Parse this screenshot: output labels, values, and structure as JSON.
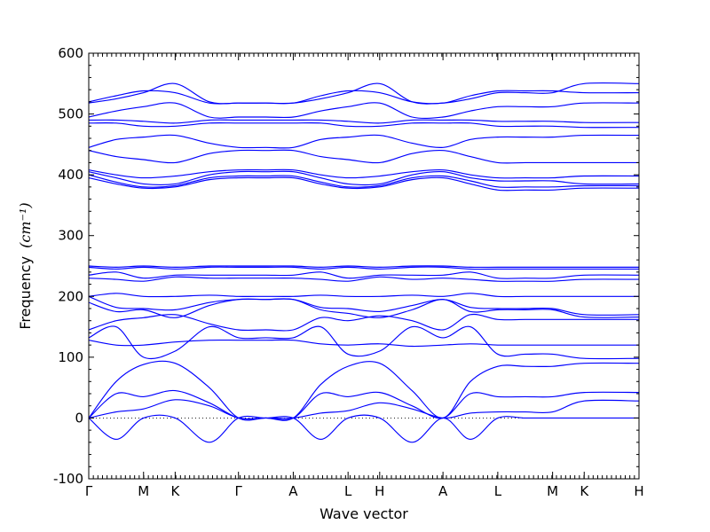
{
  "chart_data": {
    "type": "line",
    "xlabel": "Wave vector",
    "ylabel": "Frequency",
    "ylabel_unit": "(cm⁻¹)",
    "ylim": [
      -100,
      600
    ],
    "yticks": [
      -100,
      0,
      100,
      200,
      300,
      400,
      500,
      600
    ],
    "grid": false,
    "zero_line": "dotted",
    "kpath": [
      {
        "label": "Γ",
        "x": 0.0
      },
      {
        "label": "M",
        "x": 1.0
      },
      {
        "label": "K",
        "x": 1.577
      },
      {
        "label": "Γ",
        "x": 2.732
      },
      {
        "label": "A",
        "x": 3.732
      },
      {
        "label": "L",
        "x": 4.732
      },
      {
        "label": "H",
        "x": 5.309
      },
      {
        "label": "A",
        "x": 6.464
      },
      {
        "label": "L",
        "x": 7.464
      },
      {
        "label": "M",
        "x": 8.464
      },
      {
        "label": "K",
        "x": 9.041
      },
      {
        "label": "H",
        "x": 10.041
      }
    ],
    "series": [
      {
        "x": [
          0,
          0.5,
          1.0,
          1.577,
          2.2,
          2.732,
          3.232,
          3.732,
          4.232,
          4.732,
          5.309,
          5.9,
          6.464,
          6.964,
          7.464,
          7.964,
          8.464,
          9.041,
          10.041
        ],
        "values": [
          0,
          -35,
          0,
          0,
          -40,
          0,
          0,
          0,
          -35,
          0,
          0,
          -40,
          0,
          -35,
          0,
          0,
          0,
          0,
          0
        ]
      },
      {
        "x": [
          0,
          0.5,
          1.0,
          1.577,
          2.2,
          2.732,
          3.232,
          3.732,
          4.232,
          4.732,
          5.309,
          5.9,
          6.464,
          6.964,
          7.464,
          7.964,
          8.464,
          9.041,
          10.041
        ],
        "values": [
          0,
          40,
          35,
          45,
          25,
          0,
          0,
          0,
          40,
          35,
          42,
          20,
          0,
          40,
          35,
          35,
          35,
          42,
          42
        ]
      },
      {
        "x": [
          0,
          0.5,
          1.0,
          1.577,
          2.2,
          2.732,
          3.232,
          3.732,
          4.232,
          4.732,
          5.309,
          5.9,
          6.464,
          6.964,
          7.464,
          7.964,
          8.464,
          9.041,
          10.041
        ],
        "values": [
          0,
          60,
          88,
          90,
          50,
          0,
          0,
          0,
          55,
          85,
          90,
          45,
          0,
          60,
          85,
          85,
          85,
          90,
          90
        ]
      },
      {
        "x": [
          0,
          0.5,
          1.0,
          1.577,
          2.2,
          2.732,
          3.232,
          3.732,
          4.232,
          4.732,
          5.309,
          5.9,
          6.464,
          6.964,
          7.464,
          7.964,
          8.464,
          9.041,
          10.041
        ],
        "values": [
          0,
          10,
          15,
          30,
          20,
          0,
          0,
          0,
          8,
          12,
          25,
          15,
          0,
          8,
          10,
          10,
          10,
          28,
          28
        ]
      },
      {
        "x": [
          0,
          0.5,
          1.0,
          1.577,
          2.2,
          2.732,
          3.232,
          3.732,
          4.232,
          4.732,
          5.309,
          5.9,
          6.464,
          6.964,
          7.464,
          7.964,
          8.464,
          9.041,
          10.041
        ],
        "values": [
          128,
          120,
          120,
          125,
          128,
          128,
          128,
          128,
          122,
          120,
          122,
          118,
          120,
          122,
          120,
          120,
          120,
          120,
          120
        ]
      },
      {
        "x": [
          0,
          0.5,
          1.0,
          1.577,
          2.2,
          2.732,
          3.232,
          3.732,
          4.232,
          4.732,
          5.309,
          5.9,
          6.464,
          6.964,
          7.464,
          7.964,
          8.464,
          9.041,
          10.041
        ],
        "values": [
          132,
          150,
          100,
          110,
          150,
          132,
          132,
          132,
          150,
          105,
          110,
          150,
          132,
          150,
          105,
          105,
          105,
          98,
          98
        ]
      },
      {
        "x": [
          0,
          0.5,
          1.0,
          1.577,
          2.2,
          2.732,
          3.232,
          3.732,
          4.232,
          4.732,
          5.309,
          5.9,
          6.464,
          6.964,
          7.464,
          7.964,
          8.464,
          9.041,
          10.041
        ],
        "values": [
          145,
          160,
          165,
          170,
          155,
          145,
          145,
          145,
          165,
          160,
          168,
          160,
          145,
          170,
          162,
          162,
          162,
          162,
          162
        ]
      },
      {
        "x": [
          0,
          0.5,
          1.0,
          1.577,
          2.2,
          2.732,
          3.232,
          3.732,
          4.232,
          4.732,
          5.309,
          5.9,
          6.464,
          6.964,
          7.464,
          7.964,
          8.464,
          9.041,
          10.041
        ],
        "values": [
          190,
          175,
          178,
          165,
          185,
          195,
          195,
          195,
          178,
          172,
          165,
          178,
          195,
          175,
          178,
          178,
          178,
          166,
          166
        ]
      },
      {
        "x": [
          0,
          0.5,
          1.0,
          1.577,
          2.2,
          2.732,
          3.232,
          3.732,
          4.232,
          4.732,
          5.309,
          5.9,
          6.464,
          6.964,
          7.464,
          7.964,
          8.464,
          9.041,
          10.041
        ],
        "values": [
          200,
          182,
          180,
          178,
          190,
          195,
          195,
          195,
          182,
          180,
          175,
          185,
          195,
          182,
          180,
          180,
          180,
          170,
          170
        ]
      },
      {
        "x": [
          0,
          0.5,
          1.0,
          1.577,
          2.2,
          2.732,
          3.232,
          3.732,
          4.232,
          4.732,
          5.309,
          5.9,
          6.464,
          6.964,
          7.464,
          7.964,
          8.464,
          9.041,
          10.041
        ],
        "values": [
          200,
          205,
          200,
          200,
          202,
          200,
          200,
          200,
          202,
          200,
          200,
          202,
          200,
          205,
          200,
          200,
          200,
          200,
          200
        ]
      },
      {
        "x": [
          0,
          0.5,
          1.0,
          1.577,
          2.2,
          2.732,
          3.232,
          3.732,
          4.232,
          4.732,
          5.309,
          5.9,
          6.464,
          6.964,
          7.464,
          7.964,
          8.464,
          9.041,
          10.041
        ],
        "values": [
          230,
          228,
          225,
          232,
          230,
          230,
          230,
          230,
          228,
          225,
          232,
          228,
          230,
          228,
          225,
          225,
          225,
          228,
          228
        ]
      },
      {
        "x": [
          0,
          0.5,
          1.0,
          1.577,
          2.2,
          2.732,
          3.232,
          3.732,
          4.232,
          4.732,
          5.309,
          5.9,
          6.464,
          6.964,
          7.464,
          7.964,
          8.464,
          9.041,
          10.041
        ],
        "values": [
          235,
          240,
          230,
          235,
          235,
          235,
          235,
          235,
          240,
          230,
          235,
          235,
          235,
          240,
          230,
          230,
          230,
          235,
          235
        ]
      },
      {
        "x": [
          0,
          0.5,
          1.0,
          1.577,
          2.2,
          2.732,
          3.232,
          3.732,
          4.232,
          4.732,
          5.309,
          5.9,
          6.464,
          6.964,
          7.464,
          7.964,
          8.464,
          9.041,
          10.041
        ],
        "values": [
          248,
          245,
          248,
          245,
          248,
          248,
          248,
          248,
          245,
          248,
          245,
          248,
          248,
          245,
          245,
          245,
          245,
          245,
          245
        ]
      },
      {
        "x": [
          0,
          0.5,
          1.0,
          1.577,
          2.2,
          2.732,
          3.232,
          3.732,
          4.232,
          4.732,
          5.309,
          5.9,
          6.464,
          6.964,
          7.464,
          7.964,
          8.464,
          9.041,
          10.041
        ],
        "values": [
          250,
          248,
          250,
          248,
          250,
          250,
          250,
          250,
          248,
          250,
          248,
          250,
          250,
          248,
          248,
          248,
          248,
          248,
          248
        ]
      },
      {
        "x": [
          0,
          0.5,
          1.0,
          1.577,
          2.2,
          2.732,
          3.232,
          3.732,
          4.232,
          4.732,
          5.309,
          5.9,
          6.464,
          6.964,
          7.464,
          7.964,
          8.464,
          9.041,
          10.041
        ],
        "values": [
          395,
          385,
          378,
          380,
          392,
          395,
          395,
          395,
          385,
          378,
          380,
          392,
          395,
          385,
          375,
          375,
          375,
          378,
          378
        ]
      },
      {
        "x": [
          0,
          0.5,
          1.0,
          1.577,
          2.2,
          2.732,
          3.232,
          3.732,
          4.232,
          4.732,
          5.309,
          5.9,
          6.464,
          6.964,
          7.464,
          7.964,
          8.464,
          9.041,
          10.041
        ],
        "values": [
          400,
          388,
          380,
          382,
          395,
          398,
          398,
          398,
          388,
          380,
          382,
          395,
          398,
          390,
          380,
          380,
          380,
          382,
          382
        ]
      },
      {
        "x": [
          0,
          0.5,
          1.0,
          1.577,
          2.2,
          2.732,
          3.232,
          3.732,
          4.232,
          4.732,
          5.309,
          5.9,
          6.464,
          6.964,
          7.464,
          7.964,
          8.464,
          9.041,
          10.041
        ],
        "values": [
          405,
          395,
          385,
          385,
          400,
          405,
          405,
          405,
          395,
          385,
          385,
          400,
          405,
          395,
          390,
          390,
          390,
          385,
          385
        ]
      },
      {
        "x": [
          0,
          0.5,
          1.0,
          1.577,
          2.2,
          2.732,
          3.232,
          3.732,
          4.232,
          4.732,
          5.309,
          5.9,
          6.464,
          6.964,
          7.464,
          7.964,
          8.464,
          9.041,
          10.041
        ],
        "values": [
          408,
          400,
          395,
          398,
          405,
          408,
          408,
          408,
          400,
          395,
          398,
          405,
          408,
          400,
          395,
          395,
          395,
          398,
          398
        ]
      },
      {
        "x": [
          0,
          0.5,
          1.0,
          1.577,
          2.2,
          2.732,
          3.232,
          3.732,
          4.232,
          4.732,
          5.309,
          5.9,
          6.464,
          6.964,
          7.464,
          7.964,
          8.464,
          9.041,
          10.041
        ],
        "values": [
          440,
          430,
          425,
          420,
          435,
          440,
          440,
          440,
          430,
          425,
          420,
          435,
          440,
          430,
          420,
          420,
          420,
          420,
          420
        ]
      },
      {
        "x": [
          0,
          0.5,
          1.0,
          1.577,
          2.2,
          2.732,
          3.232,
          3.732,
          4.232,
          4.732,
          5.309,
          5.9,
          6.464,
          6.964,
          7.464,
          7.964,
          8.464,
          9.041,
          10.041
        ],
        "values": [
          445,
          458,
          462,
          465,
          452,
          445,
          445,
          445,
          458,
          462,
          465,
          452,
          445,
          458,
          462,
          462,
          462,
          465,
          465
        ]
      },
      {
        "x": [
          0,
          0.5,
          1.0,
          1.577,
          2.2,
          2.732,
          3.232,
          3.732,
          4.232,
          4.732,
          5.309,
          5.9,
          6.464,
          6.964,
          7.464,
          7.964,
          8.464,
          9.041,
          10.041
        ],
        "values": [
          485,
          485,
          480,
          480,
          485,
          485,
          485,
          485,
          485,
          480,
          480,
          485,
          485,
          485,
          480,
          480,
          480,
          478,
          478
        ]
      },
      {
        "x": [
          0,
          0.5,
          1.0,
          1.577,
          2.2,
          2.732,
          3.232,
          3.732,
          4.232,
          4.732,
          5.309,
          5.9,
          6.464,
          6.964,
          7.464,
          7.964,
          8.464,
          9.041,
          10.041
        ],
        "values": [
          490,
          490,
          488,
          485,
          490,
          490,
          490,
          490,
          490,
          488,
          485,
          490,
          490,
          490,
          488,
          488,
          488,
          486,
          486
        ]
      },
      {
        "x": [
          0,
          0.5,
          1.0,
          1.577,
          2.2,
          2.732,
          3.232,
          3.732,
          4.232,
          4.732,
          5.309,
          5.9,
          6.464,
          6.964,
          7.464,
          7.964,
          8.464,
          9.041,
          10.041
        ],
        "values": [
          495,
          505,
          512,
          518,
          495,
          495,
          495,
          495,
          505,
          512,
          518,
          495,
          495,
          505,
          512,
          512,
          512,
          518,
          518
        ]
      },
      {
        "x": [
          0,
          0.5,
          1.0,
          1.577,
          2.2,
          2.732,
          3.232,
          3.732,
          4.232,
          4.732,
          5.309,
          5.9,
          6.464,
          6.964,
          7.464,
          7.964,
          8.464,
          9.041,
          10.041
        ],
        "values": [
          518,
          525,
          535,
          550,
          520,
          518,
          518,
          518,
          525,
          535,
          550,
          520,
          518,
          525,
          535,
          535,
          535,
          550,
          550
        ]
      },
      {
        "x": [
          0,
          0.5,
          1.0,
          1.577,
          2.2,
          2.732,
          3.232,
          3.732,
          4.232,
          4.732,
          5.309,
          5.9,
          6.464,
          6.964,
          7.464,
          7.964,
          8.464,
          9.041,
          10.041
        ],
        "values": [
          520,
          530,
          538,
          535,
          518,
          518,
          518,
          518,
          530,
          538,
          535,
          520,
          518,
          530,
          538,
          538,
          538,
          535,
          535
        ]
      }
    ]
  }
}
